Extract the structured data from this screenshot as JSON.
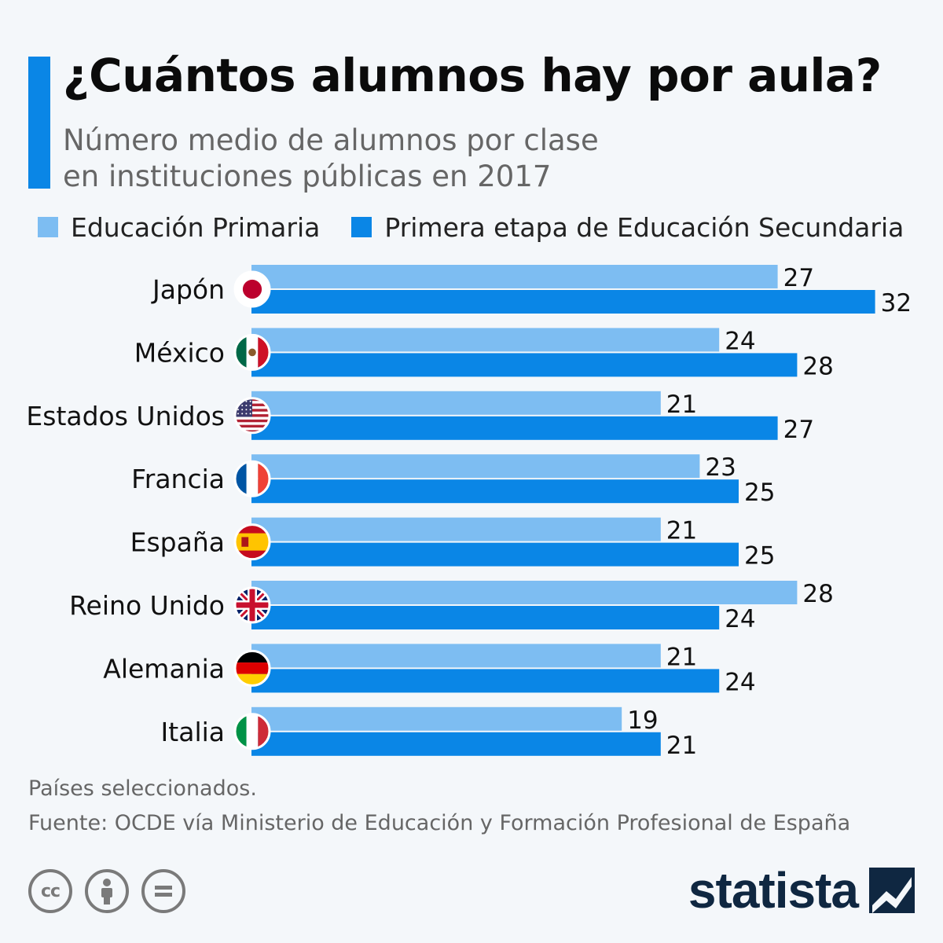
{
  "header": {
    "title": "¿Cuántos alumnos hay por aula?",
    "subtitle_line1": "Número medio de alumnos por clase",
    "subtitle_line2": "en instituciones públicas en 2017"
  },
  "colors": {
    "accent": "#0a86e6",
    "primary": "#7dbdf2",
    "secondary": "#0a86e6"
  },
  "chart_data": {
    "type": "bar",
    "orientation": "horizontal",
    "categories": [
      "Japón",
      "México",
      "Estados Unidos",
      "Francia",
      "España",
      "Reino Unido",
      "Alemania",
      "Italia"
    ],
    "flags": [
      "japan-flag",
      "mexico-flag",
      "usa-flag",
      "france-flag",
      "spain-flag",
      "uk-flag",
      "germany-flag",
      "italy-flag"
    ],
    "series": [
      {
        "name": "Educación Primaria",
        "color": "#7dbdf2",
        "values": [
          27,
          24,
          21,
          23,
          21,
          28,
          21,
          19
        ]
      },
      {
        "name": "Primera etapa de Educación Secundaria",
        "color": "#0a86e6",
        "values": [
          32,
          28,
          27,
          25,
          25,
          24,
          24,
          21
        ]
      }
    ],
    "xlim": [
      0,
      32
    ],
    "legend": "top-left",
    "grid": false
  },
  "footer": {
    "note": "Países seleccionados.",
    "source": "Fuente: OCDE vía Ministerio de Educación y Formación Profesional de España",
    "cc_label": "cc",
    "logo": "statista"
  }
}
